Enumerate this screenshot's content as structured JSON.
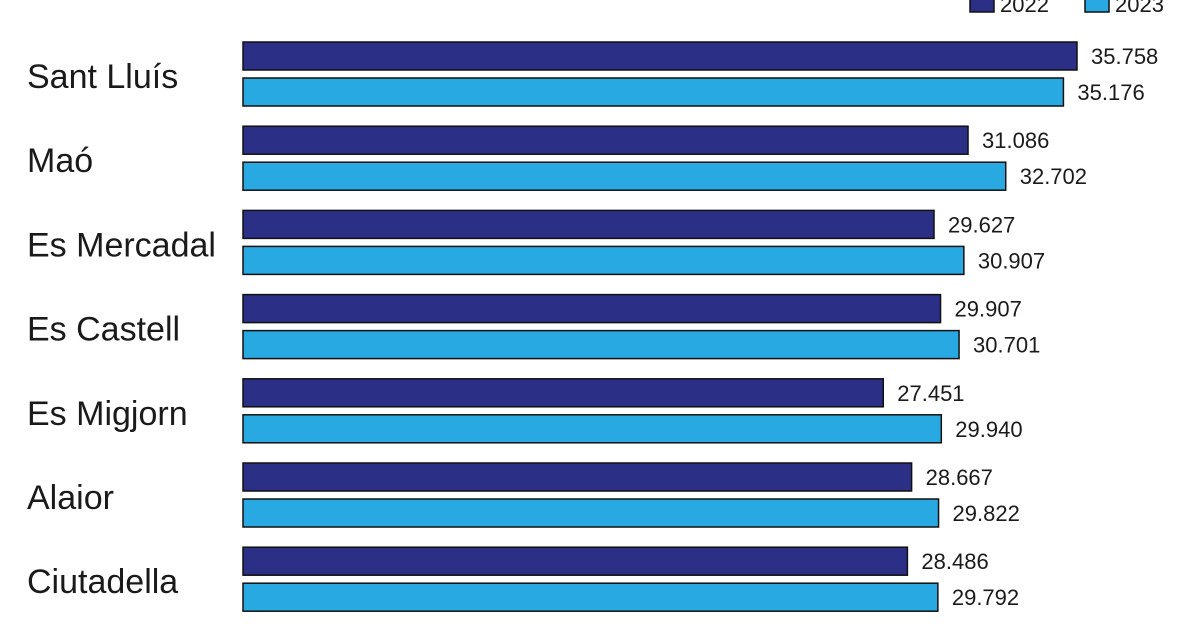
{
  "chart_data": {
    "type": "bar",
    "orientation": "horizontal",
    "categories": [
      "Sant Lluís",
      "Maó",
      "Es Mercadal",
      "Es Castell",
      "Es Migjorn",
      "Alaior",
      "Ciutadella"
    ],
    "series": [
      {
        "name": "2022",
        "color": "#2b2f86",
        "values": [
          35758,
          31086,
          29627,
          29907,
          27451,
          28667,
          28486
        ],
        "labels": [
          "35.758",
          "31.086",
          "29.627",
          "29.907",
          "27.451",
          "28.667",
          "28.486"
        ]
      },
      {
        "name": "2023",
        "color": "#29a9e1",
        "values": [
          35176,
          32702,
          30907,
          30701,
          29940,
          29822,
          29792
        ],
        "labels": [
          "35.176",
          "32.702",
          "30.907",
          "30.701",
          "29.940",
          "29.822",
          "29.792"
        ]
      }
    ],
    "xlim": [
      0,
      35758
    ],
    "legend": "top-right",
    "grid": false
  }
}
